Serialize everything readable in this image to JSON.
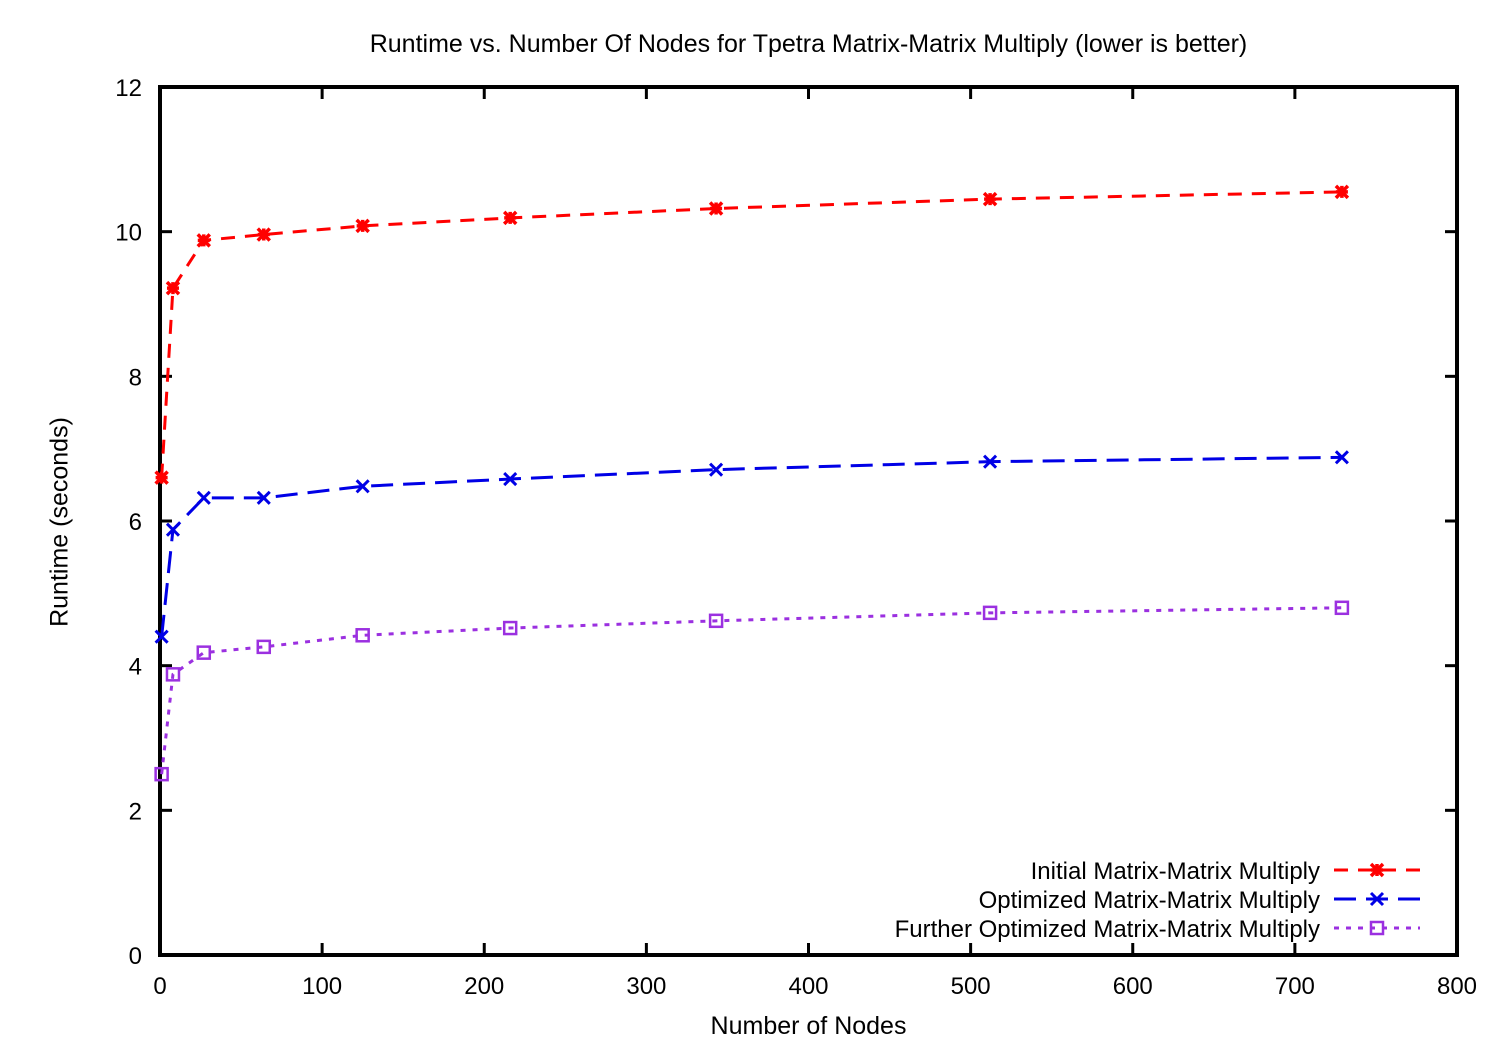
{
  "chart_data": {
    "type": "line",
    "title": "Runtime vs. Number Of Nodes for Tpetra Matrix-Matrix Multiply (lower is better)",
    "xlabel": "Number of Nodes",
    "ylabel": "Runtime (seconds)",
    "xlim": [
      0,
      800
    ],
    "ylim": [
      0,
      12
    ],
    "xticks": [
      0,
      100,
      200,
      300,
      400,
      500,
      600,
      700,
      800
    ],
    "yticks": [
      0,
      2,
      4,
      6,
      8,
      10,
      12
    ],
    "grid": false,
    "legend_position": "bottom-right",
    "series": [
      {
        "name": "Initial Matrix-Matrix Multiply",
        "color": "#ff0000",
        "line_style": "dashed",
        "marker": "asterisk",
        "x": [
          1,
          8,
          27,
          64,
          125,
          216,
          343,
          512,
          729
        ],
        "y": [
          6.6,
          9.22,
          9.88,
          9.96,
          10.08,
          10.19,
          10.32,
          10.45,
          10.55
        ]
      },
      {
        "name": "Optimized Matrix-Matrix Multiply",
        "color": "#0000e6",
        "line_style": "long-dashed",
        "marker": "x",
        "x": [
          1,
          8,
          27,
          64,
          125,
          216,
          343,
          512,
          729
        ],
        "y": [
          4.4,
          5.88,
          6.32,
          6.32,
          6.48,
          6.58,
          6.71,
          6.82,
          6.88
        ]
      },
      {
        "name": "Further Optimized Matrix-Matrix Multiply",
        "color": "#9b30e0",
        "line_style": "dotted",
        "marker": "open-square",
        "x": [
          1,
          8,
          27,
          64,
          125,
          216,
          343,
          512,
          729
        ],
        "y": [
          2.5,
          3.88,
          4.18,
          4.26,
          4.42,
          4.52,
          4.62,
          4.73,
          4.8
        ]
      }
    ]
  }
}
